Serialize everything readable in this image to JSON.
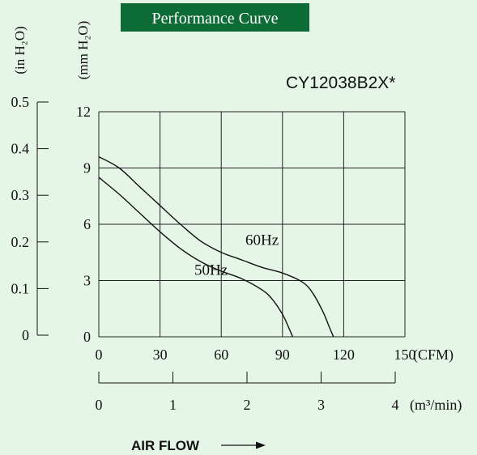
{
  "chart_data": {
    "type": "line",
    "title": "Performance Curve",
    "model": "CY12038B2X*",
    "xlabel": "AIR FLOW",
    "x_unit_primary": "(CFM)",
    "x_unit_secondary": "(m³/min)",
    "y_unit_primary": "(mm H₂O)",
    "y_unit_secondary": "(in H₂O)",
    "xlim": [
      0,
      150
    ],
    "ylim": [
      0,
      12
    ],
    "x_ticks": [
      "0",
      "30",
      "60",
      "90",
      "120",
      "150"
    ],
    "y_ticks": [
      "0",
      "3",
      "6",
      "9",
      "12"
    ],
    "x2_ticks": [
      "0",
      "1",
      "2",
      "3",
      "4"
    ],
    "y2_ticks": [
      "0",
      "0.1",
      "0.2",
      "0.3",
      "0.4",
      "0.5"
    ],
    "grid": true,
    "series": [
      {
        "name": "60Hz",
        "x": [
          0,
          10,
          20,
          30,
          40,
          50,
          60,
          70,
          80,
          90,
          100,
          105,
          110,
          113,
          115
        ],
        "y": [
          9.6,
          9.0,
          8.0,
          7.0,
          6.0,
          5.1,
          4.5,
          4.1,
          3.7,
          3.4,
          2.9,
          2.3,
          1.3,
          0.5,
          0
        ]
      },
      {
        "name": "50Hz",
        "x": [
          0,
          10,
          20,
          30,
          40,
          50,
          60,
          70,
          80,
          85,
          90,
          93,
          95
        ],
        "y": [
          8.5,
          7.6,
          6.6,
          5.6,
          4.7,
          4.0,
          3.5,
          3.1,
          2.5,
          2.0,
          1.2,
          0.5,
          0
        ]
      }
    ]
  },
  "colors": {
    "background": "#e6f6e6",
    "title_bg": "#0d6b36",
    "title_fg": "#ffffff",
    "ink": "#111111",
    "grid": "#222222"
  }
}
